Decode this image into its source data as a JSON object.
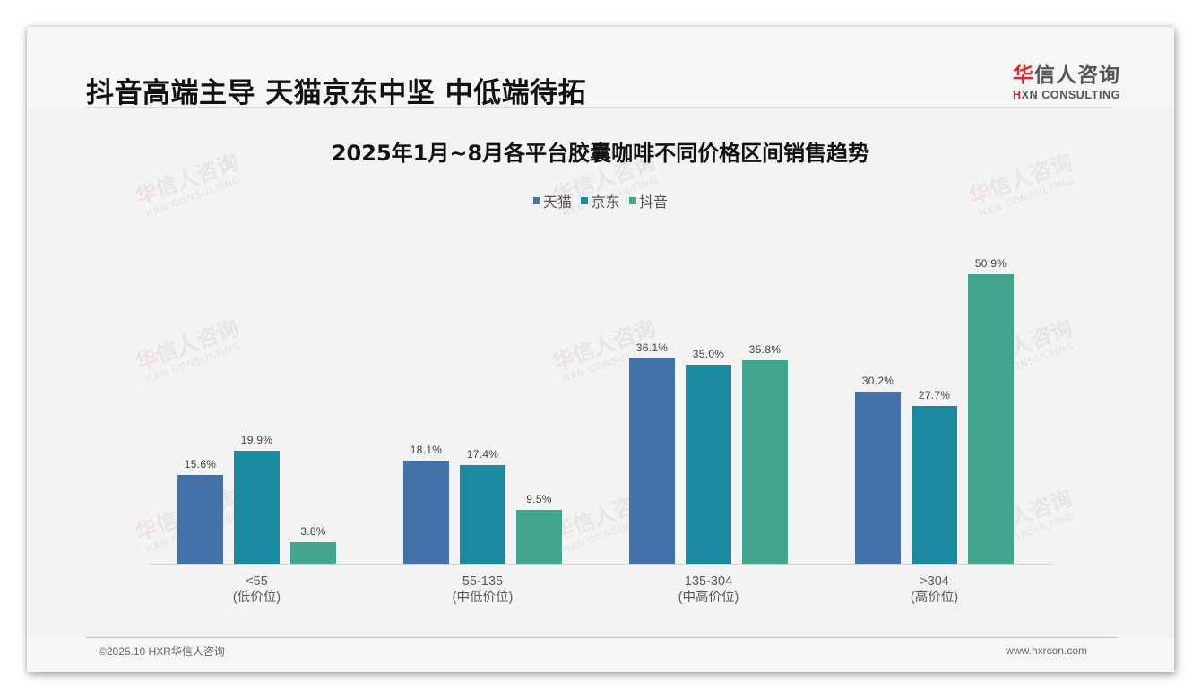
{
  "header": {
    "title": "抖音高端主导 天猫京东中坚 中低端待拓",
    "logo": {
      "cn_accent": "华",
      "cn_rest": "信人咨询",
      "en_accent": "H",
      "en_rest": "XN CONSULTING"
    }
  },
  "watermark": {
    "cn_accent": "华",
    "cn_rest": "信人咨询",
    "en": "HXN CONSULTING"
  },
  "footer": {
    "copyright": "©2025.10 HXR华信人咨询",
    "website": "www.hxrcon.com"
  },
  "colors": {
    "tmall": "#4372a8",
    "jd": "#1a8aa0",
    "douyin": "#42a68f"
  },
  "chart_data": {
    "type": "bar",
    "title": "2025年1月~8月各平台胶囊咖啡不同价格区间销售趋势",
    "xlabel": "",
    "ylabel": "",
    "ylim": [
      0,
      55
    ],
    "grid": false,
    "legend_position": "top",
    "categories": [
      "<55\n(低价位)",
      "55-135\n(中低价位)",
      "135-304\n(中高价位)",
      ">304\n(高价位)"
    ],
    "category_labels": [
      {
        "range": "<55",
        "tier": "(低价位)"
      },
      {
        "range": "55-135",
        "tier": "(中低价位)"
      },
      {
        "range": "135-304",
        "tier": "(中高价位)"
      },
      {
        "range": ">304",
        "tier": "(高价位)"
      }
    ],
    "series": [
      {
        "name": "天猫",
        "color": "#4372a8",
        "values": [
          15.6,
          18.1,
          36.1,
          30.2
        ],
        "labels": [
          "15.6%",
          "18.1%",
          "36.1%",
          "30.2%"
        ]
      },
      {
        "name": "京东",
        "color": "#1a8aa0",
        "values": [
          19.9,
          17.4,
          35.0,
          27.7
        ],
        "labels": [
          "19.9%",
          "17.4%",
          "35.0%",
          "27.7%"
        ]
      },
      {
        "name": "抖音",
        "color": "#42a68f",
        "values": [
          3.8,
          9.5,
          35.8,
          50.9
        ],
        "labels": [
          "3.8%",
          "9.5%",
          "35.8%",
          "50.9%"
        ]
      }
    ],
    "unit": "%"
  }
}
